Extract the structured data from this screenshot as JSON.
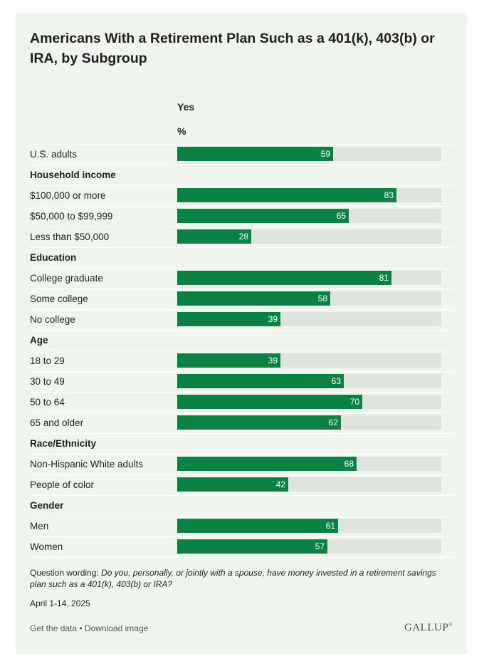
{
  "title": "Americans With a Retirement Plan Such as a 401(k), 403(b) or IRA, by Subgroup",
  "column_header": "Yes",
  "unit_header": "%",
  "chart_data": {
    "type": "bar",
    "orientation": "horizontal",
    "title": "Americans With a Retirement Plan Such as a 401(k), 403(b) or IRA, by Subgroup",
    "series": [
      {
        "name": "Yes",
        "unit": "%"
      }
    ],
    "xlim": [
      0,
      100
    ],
    "rows": [
      {
        "kind": "data",
        "label": "U.S. adults",
        "value": 59
      },
      {
        "kind": "group",
        "label": "Household income"
      },
      {
        "kind": "data",
        "label": "$100,000 or more",
        "value": 83
      },
      {
        "kind": "data",
        "label": "$50,000 to $99,999",
        "value": 65
      },
      {
        "kind": "data",
        "label": "Less than $50,000",
        "value": 28
      },
      {
        "kind": "group",
        "label": "Education"
      },
      {
        "kind": "data",
        "label": "College graduate",
        "value": 81
      },
      {
        "kind": "data",
        "label": "Some college",
        "value": 58
      },
      {
        "kind": "data",
        "label": "No college",
        "value": 39
      },
      {
        "kind": "group",
        "label": "Age"
      },
      {
        "kind": "data",
        "label": "18 to 29",
        "value": 39
      },
      {
        "kind": "data",
        "label": "30 to 49",
        "value": 63
      },
      {
        "kind": "data",
        "label": "50 to 64",
        "value": 70
      },
      {
        "kind": "data",
        "label": "65 and older",
        "value": 62
      },
      {
        "kind": "group",
        "label": "Race/Ethnicity"
      },
      {
        "kind": "data",
        "label": "Non-Hispanic White adults",
        "value": 68
      },
      {
        "kind": "data",
        "label": "People of color",
        "value": 42
      },
      {
        "kind": "group",
        "label": "Gender"
      },
      {
        "kind": "data",
        "label": "Men",
        "value": 61
      },
      {
        "kind": "data",
        "label": "Women",
        "value": 57
      }
    ],
    "colors": {
      "bar": "#0b8243",
      "track": "#dfe3de",
      "background": "#eff5ee"
    }
  },
  "footer": {
    "question_prefix": "Question wording: ",
    "question_text": "Do you, personally, or jointly with a spouse, have money invested in a retirement savings plan such as a 401(k), 403(b) or IRA?",
    "date": "April 1-14, 2025",
    "links": "Get the data • Download image",
    "logo": "GALLUP"
  }
}
